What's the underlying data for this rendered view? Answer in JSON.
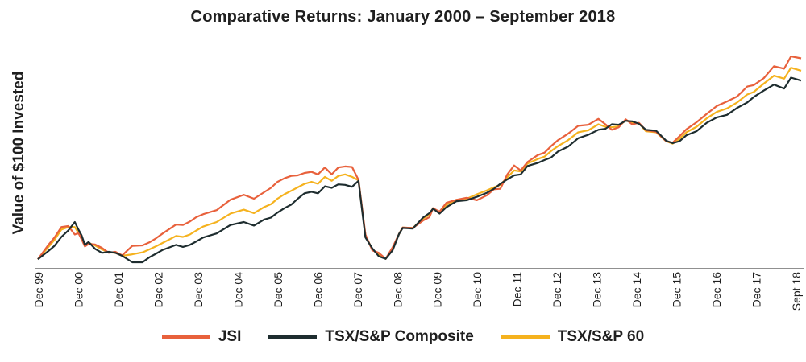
{
  "chart_data": {
    "type": "line",
    "title": "Comparative Returns: January 2000 – September 2018",
    "xlabel": "",
    "ylabel": "Value of $100 Invested",
    "x_ticks": [
      "Dec 99",
      "Dec 00",
      "Dec 01",
      "Dec 02",
      "Dec 03",
      "Dec 04",
      "Dec 05",
      "Dec 06",
      "Dec 07",
      "Dec 08",
      "Dec 09",
      "Dec 10",
      "Dec 11",
      "Dec 12",
      "Dec 13",
      "Dec 14",
      "Dec 15",
      "Dec 16",
      "Dec 17",
      "Sept 18"
    ],
    "x_range": [
      1999.92,
      2018.75
    ],
    "y_axis_ticks_shown": false,
    "grid": false,
    "legend_position": "bottom",
    "series": [
      {
        "name": "JSI",
        "color": "#E8613C",
        "x": [
          1999.92,
          2000.17,
          2000.33,
          2000.5,
          2000.67,
          2000.83,
          2000.92,
          2001.0,
          2001.08,
          2001.17,
          2001.33,
          2001.5,
          2001.67,
          2001.83,
          2002.0,
          2002.25,
          2002.5,
          2002.67,
          2002.83,
          2003.0,
          2003.33,
          2003.5,
          2003.67,
          2003.83,
          2004.0,
          2004.33,
          2004.67,
          2005.0,
          2005.25,
          2005.5,
          2005.67,
          2005.83,
          2006.0,
          2006.17,
          2006.33,
          2006.5,
          2006.67,
          2006.83,
          2007.0,
          2007.17,
          2007.33,
          2007.5,
          2007.67,
          2007.83,
          2008.0,
          2008.17,
          2008.33,
          2008.5,
          2008.67,
          2008.83,
          2008.92,
          2009.17,
          2009.42,
          2009.58,
          2009.67,
          2009.83,
          2010.0,
          2010.25,
          2010.5,
          2010.75,
          2011.0,
          2011.17,
          2011.33,
          2011.5,
          2011.67,
          2011.83,
          2012.0,
          2012.25,
          2012.42,
          2012.58,
          2012.75,
          2013.0,
          2013.25,
          2013.5,
          2013.75,
          2013.92,
          2014.08,
          2014.25,
          2014.42,
          2014.58,
          2014.75,
          2014.92,
          2015.17,
          2015.42,
          2015.58,
          2015.75,
          2015.92,
          2016.17,
          2016.42,
          2016.67,
          2016.92,
          2017.17,
          2017.42,
          2017.58,
          2017.83,
          2018.08,
          2018.33,
          2018.5,
          2018.75
        ],
        "values": [
          100,
          128,
          144,
          165,
          167,
          150,
          153,
          140,
          126,
          131,
          130,
          123,
          113,
          115,
          108,
          127,
          128,
          134,
          142,
          152,
          170,
          169,
          176,
          185,
          191,
          199,
          220,
          230,
          222,
          235,
          244,
          256,
          263,
          268,
          269,
          274,
          276,
          271,
          285,
          271,
          285,
          287,
          286,
          260,
          150,
          118,
          113,
          101,
          124,
          151,
          164,
          163,
          178,
          185,
          203,
          196,
          214,
          220,
          224,
          219,
          229,
          241,
          242,
          271,
          289,
          279,
          296,
          310,
          315,
          328,
          340,
          353,
          369,
          371,
          383,
          372,
          361,
          366,
          382,
          372,
          375,
          360,
          357,
          338,
          335,
          348,
          362,
          376,
          393,
          409,
          418,
          428,
          448,
          451,
          465,
          489,
          484,
          509,
          505
        ]
      },
      {
        "name": "TSX/S&P Composite",
        "color": "#1E2D2F",
        "x": [
          1999.92,
          2000.17,
          2000.33,
          2000.5,
          2000.67,
          2000.83,
          2000.92,
          2001.0,
          2001.08,
          2001.17,
          2001.33,
          2001.5,
          2001.67,
          2001.83,
          2002.0,
          2002.25,
          2002.5,
          2002.67,
          2002.83,
          2003.0,
          2003.33,
          2003.5,
          2003.67,
          2003.83,
          2004.0,
          2004.33,
          2004.67,
          2005.0,
          2005.25,
          2005.5,
          2005.67,
          2005.83,
          2006.0,
          2006.17,
          2006.33,
          2006.5,
          2006.67,
          2006.83,
          2007.0,
          2007.17,
          2007.33,
          2007.5,
          2007.67,
          2007.83,
          2008.0,
          2008.17,
          2008.33,
          2008.5,
          2008.67,
          2008.83,
          2008.92,
          2009.17,
          2009.42,
          2009.58,
          2009.67,
          2009.83,
          2010.0,
          2010.25,
          2010.5,
          2010.75,
          2011.0,
          2011.17,
          2011.33,
          2011.5,
          2011.67,
          2011.83,
          2012.0,
          2012.25,
          2012.42,
          2012.58,
          2012.75,
          2013.0,
          2013.25,
          2013.5,
          2013.75,
          2013.92,
          2014.08,
          2014.25,
          2014.42,
          2014.58,
          2014.75,
          2014.92,
          2015.17,
          2015.42,
          2015.58,
          2015.75,
          2015.92,
          2016.17,
          2016.42,
          2016.67,
          2016.92,
          2017.17,
          2017.42,
          2017.58,
          2017.83,
          2018.08,
          2018.33,
          2018.5,
          2018.75
        ],
        "values": [
          100,
          116,
          127,
          145,
          158,
          175,
          160,
          148,
          129,
          135,
          121,
          113,
          115,
          113,
          107,
          94,
          94,
          104,
          111,
          119,
          129,
          125,
          129,
          136,
          144,
          152,
          169,
          175,
          168,
          180,
          184,
          194,
          203,
          210,
          222,
          233,
          236,
          233,
          247,
          244,
          251,
          250,
          246,
          258,
          144,
          122,
          106,
          101,
          118,
          151,
          163,
          162,
          184,
          193,
          202,
          192,
          205,
          217,
          219,
          226,
          234,
          242,
          252,
          261,
          269,
          271,
          288,
          294,
          300,
          305,
          317,
          327,
          344,
          351,
          361,
          363,
          372,
          371,
          379,
          378,
          373,
          361,
          359,
          339,
          334,
          338,
          350,
          358,
          375,
          386,
          391,
          405,
          416,
          427,
          440,
          452,
          444,
          466,
          460
        ]
      },
      {
        "name": "TSX/S&P 60",
        "color": "#F5B21E",
        "x": [
          1999.92,
          2000.17,
          2000.33,
          2000.5,
          2000.67,
          2000.83,
          2000.92,
          2001.0,
          2001.08,
          2001.17,
          2001.33,
          2001.5,
          2001.67,
          2001.83,
          2002.0,
          2002.25,
          2002.5,
          2002.67,
          2002.83,
          2003.0,
          2003.33,
          2003.5,
          2003.67,
          2003.83,
          2004.0,
          2004.33,
          2004.67,
          2005.0,
          2005.25,
          2005.5,
          2005.67,
          2005.83,
          2006.0,
          2006.17,
          2006.33,
          2006.5,
          2006.67,
          2006.83,
          2007.0,
          2007.17,
          2007.33,
          2007.5,
          2007.67,
          2007.83,
          2008.0,
          2008.17,
          2008.33,
          2008.5,
          2008.67,
          2008.83,
          2008.92,
          2009.17,
          2009.42,
          2009.58,
          2009.67,
          2009.83,
          2010.0,
          2010.25,
          2010.5,
          2010.75,
          2011.0,
          2011.17,
          2011.33,
          2011.5,
          2011.67,
          2011.83,
          2012.0,
          2012.25,
          2012.42,
          2012.58,
          2012.75,
          2013.0,
          2013.25,
          2013.5,
          2013.75,
          2013.92,
          2014.08,
          2014.25,
          2014.42,
          2014.58,
          2014.75,
          2014.92,
          2015.17,
          2015.42,
          2015.58,
          2015.75,
          2015.92,
          2016.17,
          2016.42,
          2016.67,
          2016.92,
          2017.17,
          2017.42,
          2017.58,
          2017.83,
          2018.08,
          2018.33,
          2018.5,
          2018.75
        ],
        "values": [
          100,
          124,
          139,
          160,
          165,
          165,
          153,
          144,
          127,
          133,
          128,
          120,
          114,
          113,
          107,
          110,
          114,
          120,
          126,
          133,
          147,
          145,
          150,
          158,
          166,
          175,
          192,
          200,
          193,
          205,
          211,
          222,
          231,
          238,
          245,
          252,
          256,
          252,
          266,
          258,
          268,
          271,
          266,
          259,
          148,
          120,
          109,
          101,
          121,
          151,
          164,
          163,
          182,
          190,
          203,
          194,
          210,
          220,
          222,
          231,
          239,
          245,
          250,
          265,
          279,
          277,
          293,
          302,
          307,
          318,
          328,
          340,
          356,
          360,
          372,
          367,
          366,
          368,
          380,
          375,
          374,
          358,
          356,
          338,
          333,
          343,
          356,
          367,
          384,
          397,
          404,
          416,
          432,
          437,
          454,
          470,
          464,
          486,
          480
        ]
      }
    ]
  }
}
